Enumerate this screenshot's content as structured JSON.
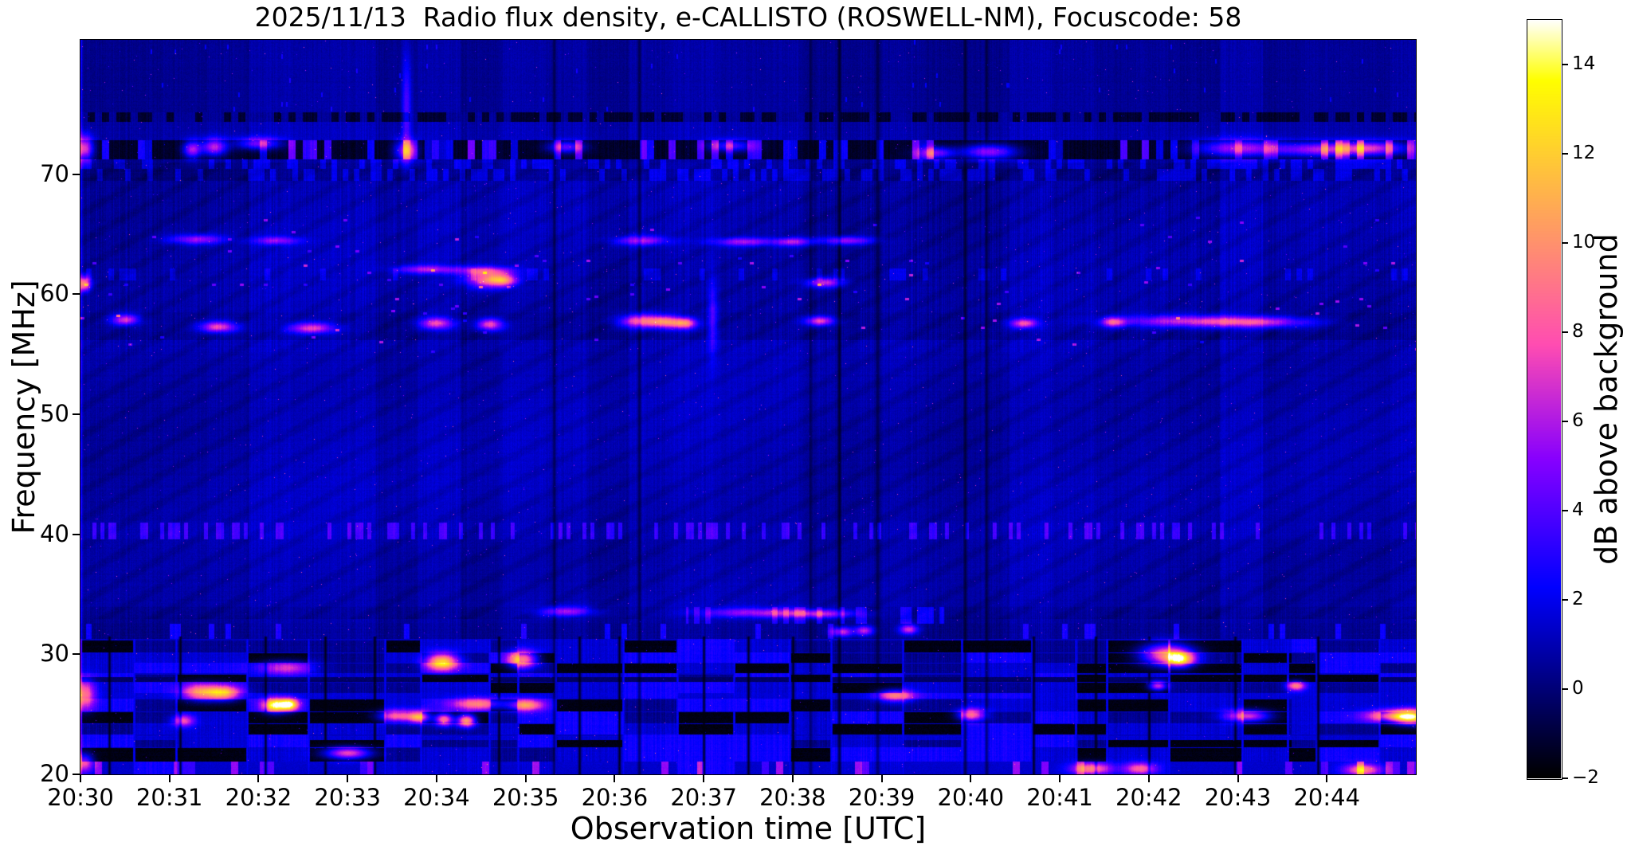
{
  "title": "2025/11/13  Radio flux density, e-CALLISTO (ROSWELL-NM), Focuscode: 58",
  "date": "2025/11/13",
  "station": "ROSWELL-NM",
  "focuscode": "58",
  "chart_data": {
    "type": "heatmap",
    "title": "2025/11/13  Radio flux density, e-CALLISTO (ROSWELL-NM), Focuscode: 58",
    "xlabel": "Observation time [UTC]",
    "ylabel": "Frequency [MHz]",
    "colorbar_label": "dB above background",
    "colormap": "gnuplot2",
    "x_ticks": [
      "20:30",
      "20:31",
      "20:32",
      "20:33",
      "20:34",
      "20:35",
      "20:36",
      "20:37",
      "20:38",
      "20:39",
      "20:40",
      "20:41",
      "20:42",
      "20:43",
      "20:44"
    ],
    "x_range": [
      "20:30",
      "20:45"
    ],
    "time_span_minutes": 15,
    "y_ticks": [
      20,
      30,
      40,
      50,
      60,
      70
    ],
    "freq_range_mhz": [
      20,
      81.2
    ],
    "colorbar_ticks": [
      -2,
      0,
      2,
      4,
      6,
      8,
      10,
      12,
      14
    ],
    "value_range_db": [
      -2,
      15
    ],
    "grid": false,
    "legend": "none",
    "background_level_db": 1.0,
    "bands": [
      {
        "f": [
          75.2,
          81.2
        ],
        "base": 0.55,
        "style": "speckle-top"
      },
      {
        "f": [
          74.4,
          75.2
        ],
        "base": -0.5,
        "style": "dark-dashes"
      },
      {
        "f": [
          72.9,
          74.4
        ],
        "base": 0.9,
        "style": "plain"
      },
      {
        "f": [
          71.3,
          72.9
        ],
        "base": -1.3,
        "style": "black-band"
      },
      {
        "f": [
          70.5,
          71.3
        ],
        "base": 0.45,
        "style": "dashes"
      },
      {
        "f": [
          69.5,
          70.5
        ],
        "base": 0.25,
        "style": "dashes"
      },
      {
        "f": [
          62.2,
          69.5
        ],
        "base": 0.85,
        "style": "striped"
      },
      {
        "f": [
          61.2,
          62.2
        ],
        "base": 0.8,
        "style": "striped-dash"
      },
      {
        "f": [
          58.5,
          61.2
        ],
        "base": 0.8,
        "style": "striped"
      },
      {
        "f": [
          56.2,
          58.5
        ],
        "base": 0.55,
        "style": "striped-speckle"
      },
      {
        "f": [
          55.2,
          56.2
        ],
        "base": 1.05,
        "style": "striped"
      },
      {
        "f": [
          41.0,
          55.2
        ],
        "base": 0.95,
        "style": "smooth"
      },
      {
        "f": [
          39.6,
          41.0
        ],
        "base": 1.05,
        "style": "dash-bright"
      },
      {
        "f": [
          34.0,
          39.6
        ],
        "base": 0.85,
        "style": "smooth"
      },
      {
        "f": [
          32.6,
          34.0
        ],
        "base": 0.55,
        "style": "dash-mid"
      },
      {
        "f": [
          31.3,
          32.6
        ],
        "base": 0.4,
        "style": "sparse-dots"
      },
      {
        "f": [
          20.0,
          31.3
        ],
        "base": 0.5,
        "style": "hf-blocks"
      }
    ],
    "hf_subrows": [
      31.3,
      30.2,
      29.35,
      28.45,
      27.75,
      26.8,
      26.35,
      25.3,
      24.3,
      23.35,
      22.3,
      21.1,
      20.0
    ],
    "hf_special": {
      "bright_rows": [
        [
          26.35,
          26.8
        ],
        [
          22.9,
          23.2
        ]
      ],
      "dark_rows": [
        [
          27.75,
          28.1
        ]
      ],
      "bottom_bright_max_f": 21.1,
      "dark_bias_t": [
        11.2,
        13.6
      ]
    },
    "hotspots": [
      [
        0.04,
        72.2,
        0.1,
        1.0,
        8.5
      ],
      [
        0.04,
        60.9,
        0.07,
        0.6,
        9
      ],
      [
        0.04,
        26.7,
        0.12,
        1.2,
        7.5
      ],
      [
        0.04,
        21.0,
        0.1,
        0.8,
        6.5
      ],
      [
        1.25,
        72.1,
        0.1,
        0.7,
        7
      ],
      [
        1.5,
        72.3,
        0.14,
        0.7,
        7.5
      ],
      [
        2.0,
        72.6,
        0.25,
        0.5,
        6
      ],
      [
        3.65,
        72.0,
        0.12,
        0.9,
        7
      ],
      [
        5.45,
        72.3,
        0.2,
        0.5,
        5.5
      ],
      [
        7.3,
        72.4,
        0.25,
        0.5,
        5
      ],
      [
        9.6,
        71.8,
        0.2,
        0.5,
        6
      ],
      [
        10.2,
        71.9,
        0.3,
        0.6,
        6.5
      ],
      [
        13.0,
        72.2,
        0.45,
        0.7,
        7
      ],
      [
        13.9,
        72.1,
        0.5,
        0.6,
        6.5
      ],
      [
        14.5,
        72.2,
        0.4,
        0.6,
        7
      ],
      [
        1.35,
        26.85,
        0.22,
        0.7,
        8
      ],
      [
        1.62,
        26.8,
        0.18,
        0.6,
        8.5
      ],
      [
        1.15,
        24.5,
        0.12,
        0.5,
        6.5
      ],
      [
        2.18,
        25.8,
        0.14,
        0.6,
        12.5
      ],
      [
        2.35,
        25.85,
        0.1,
        0.5,
        11
      ],
      [
        2.3,
        28.9,
        0.3,
        0.6,
        5.5
      ],
      [
        3.0,
        21.8,
        0.25,
        0.5,
        9
      ],
      [
        3.55,
        24.9,
        0.2,
        0.5,
        8
      ],
      [
        3.8,
        24.8,
        0.12,
        0.5,
        9.5
      ],
      [
        4.06,
        29.4,
        0.18,
        0.7,
        12
      ],
      [
        4.33,
        24.5,
        0.1,
        0.5,
        12
      ],
      [
        4.08,
        24.6,
        0.1,
        0.5,
        10.5
      ],
      [
        4.96,
        29.6,
        0.16,
        0.7,
        11
      ],
      [
        4.45,
        25.9,
        0.3,
        0.5,
        7
      ],
      [
        5.0,
        25.8,
        0.2,
        0.5,
        8
      ],
      [
        4.55,
        61.3,
        0.22,
        0.7,
        8
      ],
      [
        4.75,
        61.2,
        0.15,
        0.5,
        7
      ],
      [
        4.0,
        57.6,
        0.18,
        0.5,
        7
      ],
      [
        4.6,
        57.5,
        0.14,
        0.5,
        7.5
      ],
      [
        3.9,
        62.1,
        0.35,
        0.35,
        5
      ],
      [
        4.55,
        62.0,
        0.3,
        0.35,
        5
      ],
      [
        0.5,
        57.9,
        0.15,
        0.45,
        6.5
      ],
      [
        1.55,
        57.3,
        0.2,
        0.45,
        7
      ],
      [
        2.6,
        57.2,
        0.25,
        0.45,
        6.5
      ],
      [
        1.3,
        64.6,
        0.3,
        0.4,
        5
      ],
      [
        2.2,
        64.5,
        0.25,
        0.35,
        4.5
      ],
      [
        6.3,
        57.8,
        0.25,
        0.55,
        8
      ],
      [
        6.6,
        57.7,
        0.18,
        0.5,
        8
      ],
      [
        6.8,
        57.6,
        0.12,
        0.45,
        7
      ],
      [
        6.3,
        64.5,
        0.3,
        0.4,
        5
      ],
      [
        7.45,
        64.4,
        0.35,
        0.35,
        5
      ],
      [
        8.0,
        64.4,
        0.2,
        0.35,
        5
      ],
      [
        8.6,
        64.5,
        0.3,
        0.35,
        5
      ],
      [
        5.45,
        33.6,
        0.3,
        0.4,
        5
      ],
      [
        7.6,
        33.5,
        0.6,
        0.4,
        5
      ],
      [
        8.3,
        33.4,
        0.4,
        0.35,
        5
      ],
      [
        8.55,
        31.9,
        0.12,
        0.4,
        6.5
      ],
      [
        8.8,
        32.0,
        0.1,
        0.4,
        6
      ],
      [
        9.3,
        32.1,
        0.1,
        0.4,
        6.5
      ],
      [
        8.3,
        57.8,
        0.16,
        0.4,
        7
      ],
      [
        8.35,
        61.0,
        0.2,
        0.4,
        6
      ],
      [
        10.6,
        57.6,
        0.15,
        0.4,
        7
      ],
      [
        11.6,
        57.7,
        0.12,
        0.4,
        6.5
      ],
      [
        12.4,
        57.8,
        0.8,
        0.5,
        5.5
      ],
      [
        13.2,
        57.7,
        0.6,
        0.45,
        5.5
      ],
      [
        7.1,
        58.0,
        0.05,
        3.0,
        3.0
      ],
      [
        3.66,
        75.5,
        0.05,
        4.5,
        3.5
      ],
      [
        9.15,
        26.6,
        0.2,
        0.5,
        8
      ],
      [
        10.0,
        25.0,
        0.15,
        0.5,
        8.5
      ],
      [
        11.35,
        20.5,
        0.22,
        0.5,
        8
      ],
      [
        11.9,
        20.5,
        0.18,
        0.5,
        7
      ],
      [
        12.1,
        27.4,
        0.1,
        0.4,
        8
      ],
      [
        12.2,
        30.0,
        0.28,
        0.9,
        10.5
      ],
      [
        12.35,
        29.6,
        0.15,
        0.6,
        9
      ],
      [
        13.65,
        27.4,
        0.1,
        0.4,
        8
      ],
      [
        13.1,
        24.9,
        0.25,
        0.5,
        8.5
      ],
      [
        14.4,
        20.4,
        0.2,
        0.5,
        8
      ],
      [
        14.95,
        24.8,
        0.2,
        0.6,
        12
      ],
      [
        14.75,
        24.9,
        0.3,
        0.5,
        9
      ]
    ],
    "dark_time_lines_min": [
      [
        5.32,
        0.5
      ],
      [
        6.27,
        0.55
      ],
      [
        8.2,
        0.45
      ],
      [
        8.52,
        0.75
      ],
      [
        8.95,
        0.5
      ],
      [
        9.93,
        0.6
      ],
      [
        10.18,
        0.55
      ]
    ],
    "dark_time_lines_lowband_min": [
      0.32,
      1.12,
      2.08,
      2.75,
      3.3,
      4.7,
      5.6,
      6.05,
      7.0,
      7.5,
      8.0,
      10.7,
      11.4,
      12.0,
      12.97,
      13.9
    ]
  },
  "colors": {
    "page_bg": "#ffffff",
    "text": "#000000",
    "cmap_low": "#000000",
    "cmap_mid_blue": "#0000e0",
    "cmap_magenta": "#cc22cc",
    "cmap_high": "#ffffee"
  }
}
